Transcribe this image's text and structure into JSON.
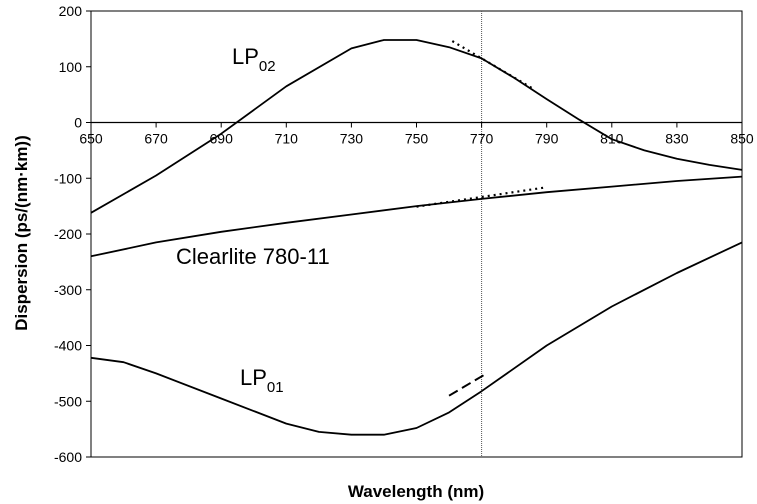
{
  "chart_data": {
    "type": "line",
    "title": "",
    "xlabel": "Wavelength (nm)",
    "ylabel": "Dispersion (ps/(nm·km))",
    "xlim": [
      650,
      850
    ],
    "ylim": [
      -600,
      200
    ],
    "x_ticks": [
      "650",
      "670",
      "690",
      "710",
      "730",
      "750",
      "770",
      "790",
      "810",
      "830",
      "850"
    ],
    "y_ticks": [
      "200",
      "100",
      "0",
      "-100",
      "-200",
      "-300",
      "-400",
      "-500",
      "-600"
    ],
    "reference_line_x": 770,
    "grid": false,
    "series": [
      {
        "name": "LP02",
        "label_main": "LP",
        "label_sub": "02",
        "style": "solid",
        "x": [
          650,
          670,
          690,
          710,
          730,
          740,
          750,
          760,
          770,
          780,
          790,
          800,
          810,
          820,
          830,
          840,
          850
        ],
        "y": [
          -162,
          -95,
          -20,
          65,
          133,
          148,
          148,
          135,
          115,
          80,
          42,
          5,
          -30,
          -50,
          -65,
          -76,
          -85
        ]
      },
      {
        "name": "Clearlite 780-11",
        "style": "solid",
        "x": [
          650,
          670,
          690,
          710,
          730,
          750,
          770,
          790,
          810,
          830,
          850
        ],
        "y": [
          -240,
          -215,
          -196,
          -180,
          -165,
          -150,
          -137,
          -125,
          -115,
          -105,
          -97
        ]
      },
      {
        "name": "LP01",
        "label_main": "LP",
        "label_sub": "01",
        "style": "solid",
        "x": [
          650,
          660,
          670,
          690,
          710,
          720,
          730,
          740,
          750,
          760,
          770,
          790,
          810,
          830,
          850
        ],
        "y": [
          -422,
          -430,
          -450,
          -495,
          -540,
          -555,
          -560,
          -560,
          -548,
          -520,
          -482,
          -400,
          -330,
          -270,
          -215
        ]
      }
    ],
    "tangent_lines": [
      {
        "style": "dotted",
        "x": [
          761,
          786
        ],
        "y": [
          146,
          60
        ]
      },
      {
        "style": "dotted",
        "x": [
          750,
          789
        ],
        "y": [
          -151,
          -117
        ]
      },
      {
        "style": "dashed",
        "x": [
          760,
          771
        ],
        "y": [
          -490,
          -452
        ]
      }
    ]
  }
}
